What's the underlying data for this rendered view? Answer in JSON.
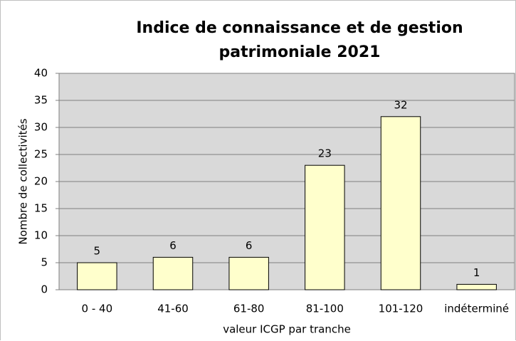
{
  "chart_data": {
    "type": "bar",
    "title": "Indice de connaissance et de gestion patrimoniale 2021",
    "x_label": "valeur ICGP par tranche",
    "y_label": "Nombre de collectivités",
    "categories": [
      "0 - 40",
      "41-60",
      "61-80",
      "81-100",
      "101-120",
      "indéterminé"
    ],
    "values": [
      5,
      6,
      6,
      23,
      32,
      1
    ],
    "color": "#ffffcc",
    "ylim": [
      0,
      40
    ],
    "yticks": [
      0,
      5,
      10,
      15,
      20,
      25,
      30,
      35,
      40
    ],
    "grid": true
  }
}
